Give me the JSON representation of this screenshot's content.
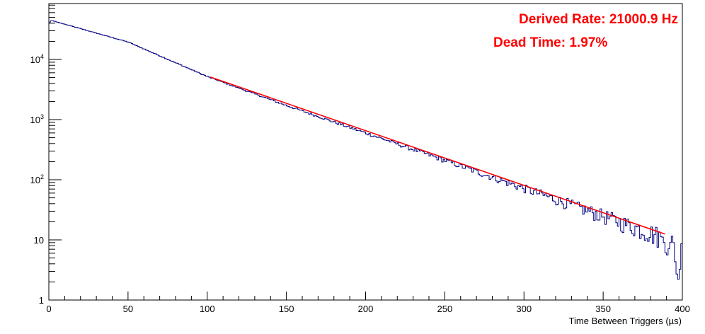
{
  "chart_data": {
    "type": "line",
    "title": "",
    "xlabel": "Time Between Triggers (µs)",
    "ylabel": "",
    "xlim": [
      0,
      400
    ],
    "ylim": [
      1,
      80000
    ],
    "y_scale": "log",
    "grid": false,
    "x_ticks": [
      "0",
      "50",
      "100",
      "150",
      "200",
      "250",
      "300",
      "350",
      "400"
    ],
    "y_ticks": [
      "1",
      "10",
      "10^2",
      "10^3",
      "10^4"
    ],
    "annotations": [
      "Derived Rate: 21000.9 Hz",
      "Dead Time: 1.97%"
    ],
    "histogram": {
      "color": "#000080",
      "bin_width": 1,
      "x_range": [
        0,
        400
      ],
      "points": [
        {
          "x": 0,
          "y": 40000
        },
        {
          "x": 1,
          "y": 43500
        },
        {
          "x": 2,
          "y": 44000
        },
        {
          "x": 3,
          "y": 43500
        },
        {
          "x": 5,
          "y": 42000
        },
        {
          "x": 50,
          "y": 19500
        },
        {
          "x": 100,
          "y": 5200
        },
        {
          "x": 150,
          "y": 1720
        },
        {
          "x": 200,
          "y": 600
        },
        {
          "x": 250,
          "y": 210
        },
        {
          "x": 300,
          "y": 72
        },
        {
          "x": 350,
          "y": 25
        },
        {
          "x": 388,
          "y": 11
        },
        {
          "x": 390,
          "y": 5
        },
        {
          "x": 392,
          "y": 8
        },
        {
          "x": 394,
          "y": 13
        },
        {
          "x": 396,
          "y": 3
        },
        {
          "x": 398,
          "y": 2
        },
        {
          "x": 400,
          "y": 14
        }
      ]
    },
    "fit": {
      "color": "#ff0000",
      "x_start": 102,
      "x_end": 389,
      "y_start": 5100,
      "y_end": 12.5
    }
  }
}
